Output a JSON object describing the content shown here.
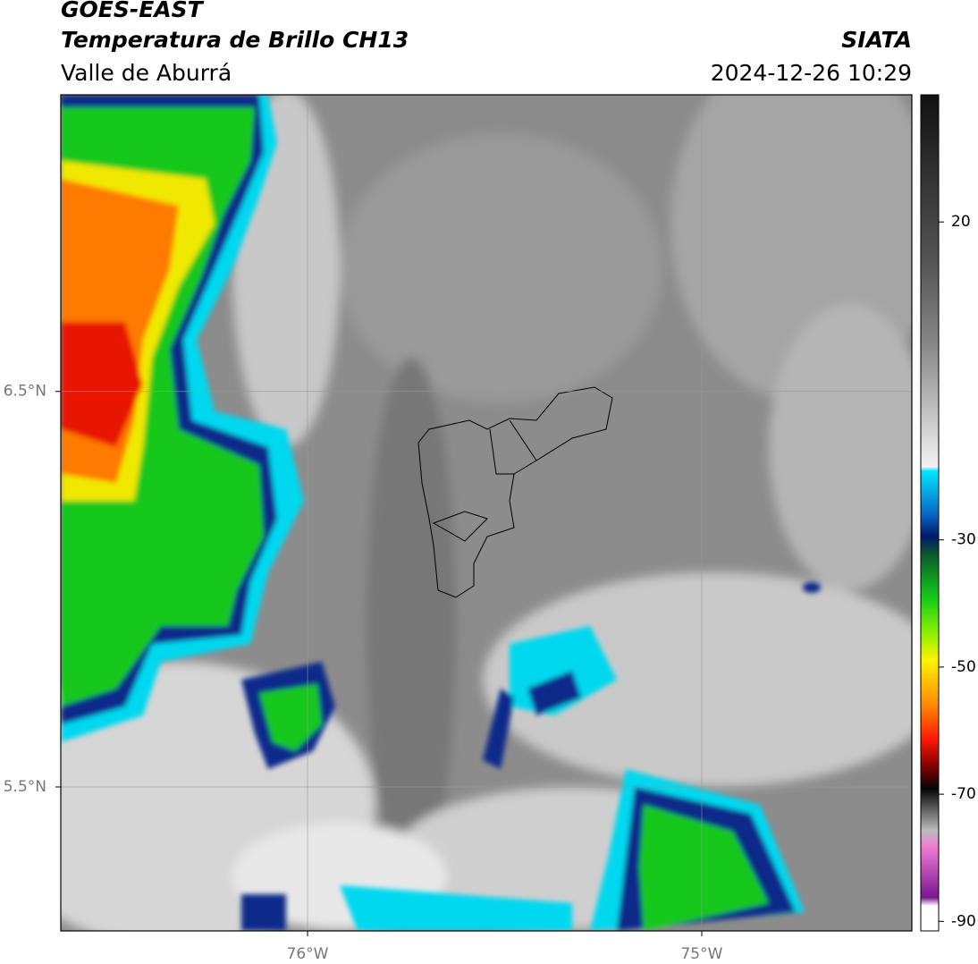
{
  "header": {
    "title": "GOES-EAST",
    "subtitle": "Temperatura de Brillo CH13",
    "region": "Valle de Aburrá",
    "source": "SIATA",
    "datetime": "2024-12-26 10:29"
  },
  "map": {
    "xlim": [
      -76.626,
      -74.467
    ],
    "ylim": [
      5.136,
      7.25
    ],
    "xticks": [
      {
        "value": -76,
        "label": "76°W"
      },
      {
        "value": -75,
        "label": "75°W"
      }
    ],
    "yticks": [
      {
        "value": 6.5,
        "label": "6.5°N"
      },
      {
        "value": 5.5,
        "label": "5.5°N"
      }
    ]
  },
  "colorbar": {
    "lim": [
      -91.5,
      40
    ],
    "ticks": [
      20,
      -30,
      -50,
      -70,
      -90
    ]
  }
}
